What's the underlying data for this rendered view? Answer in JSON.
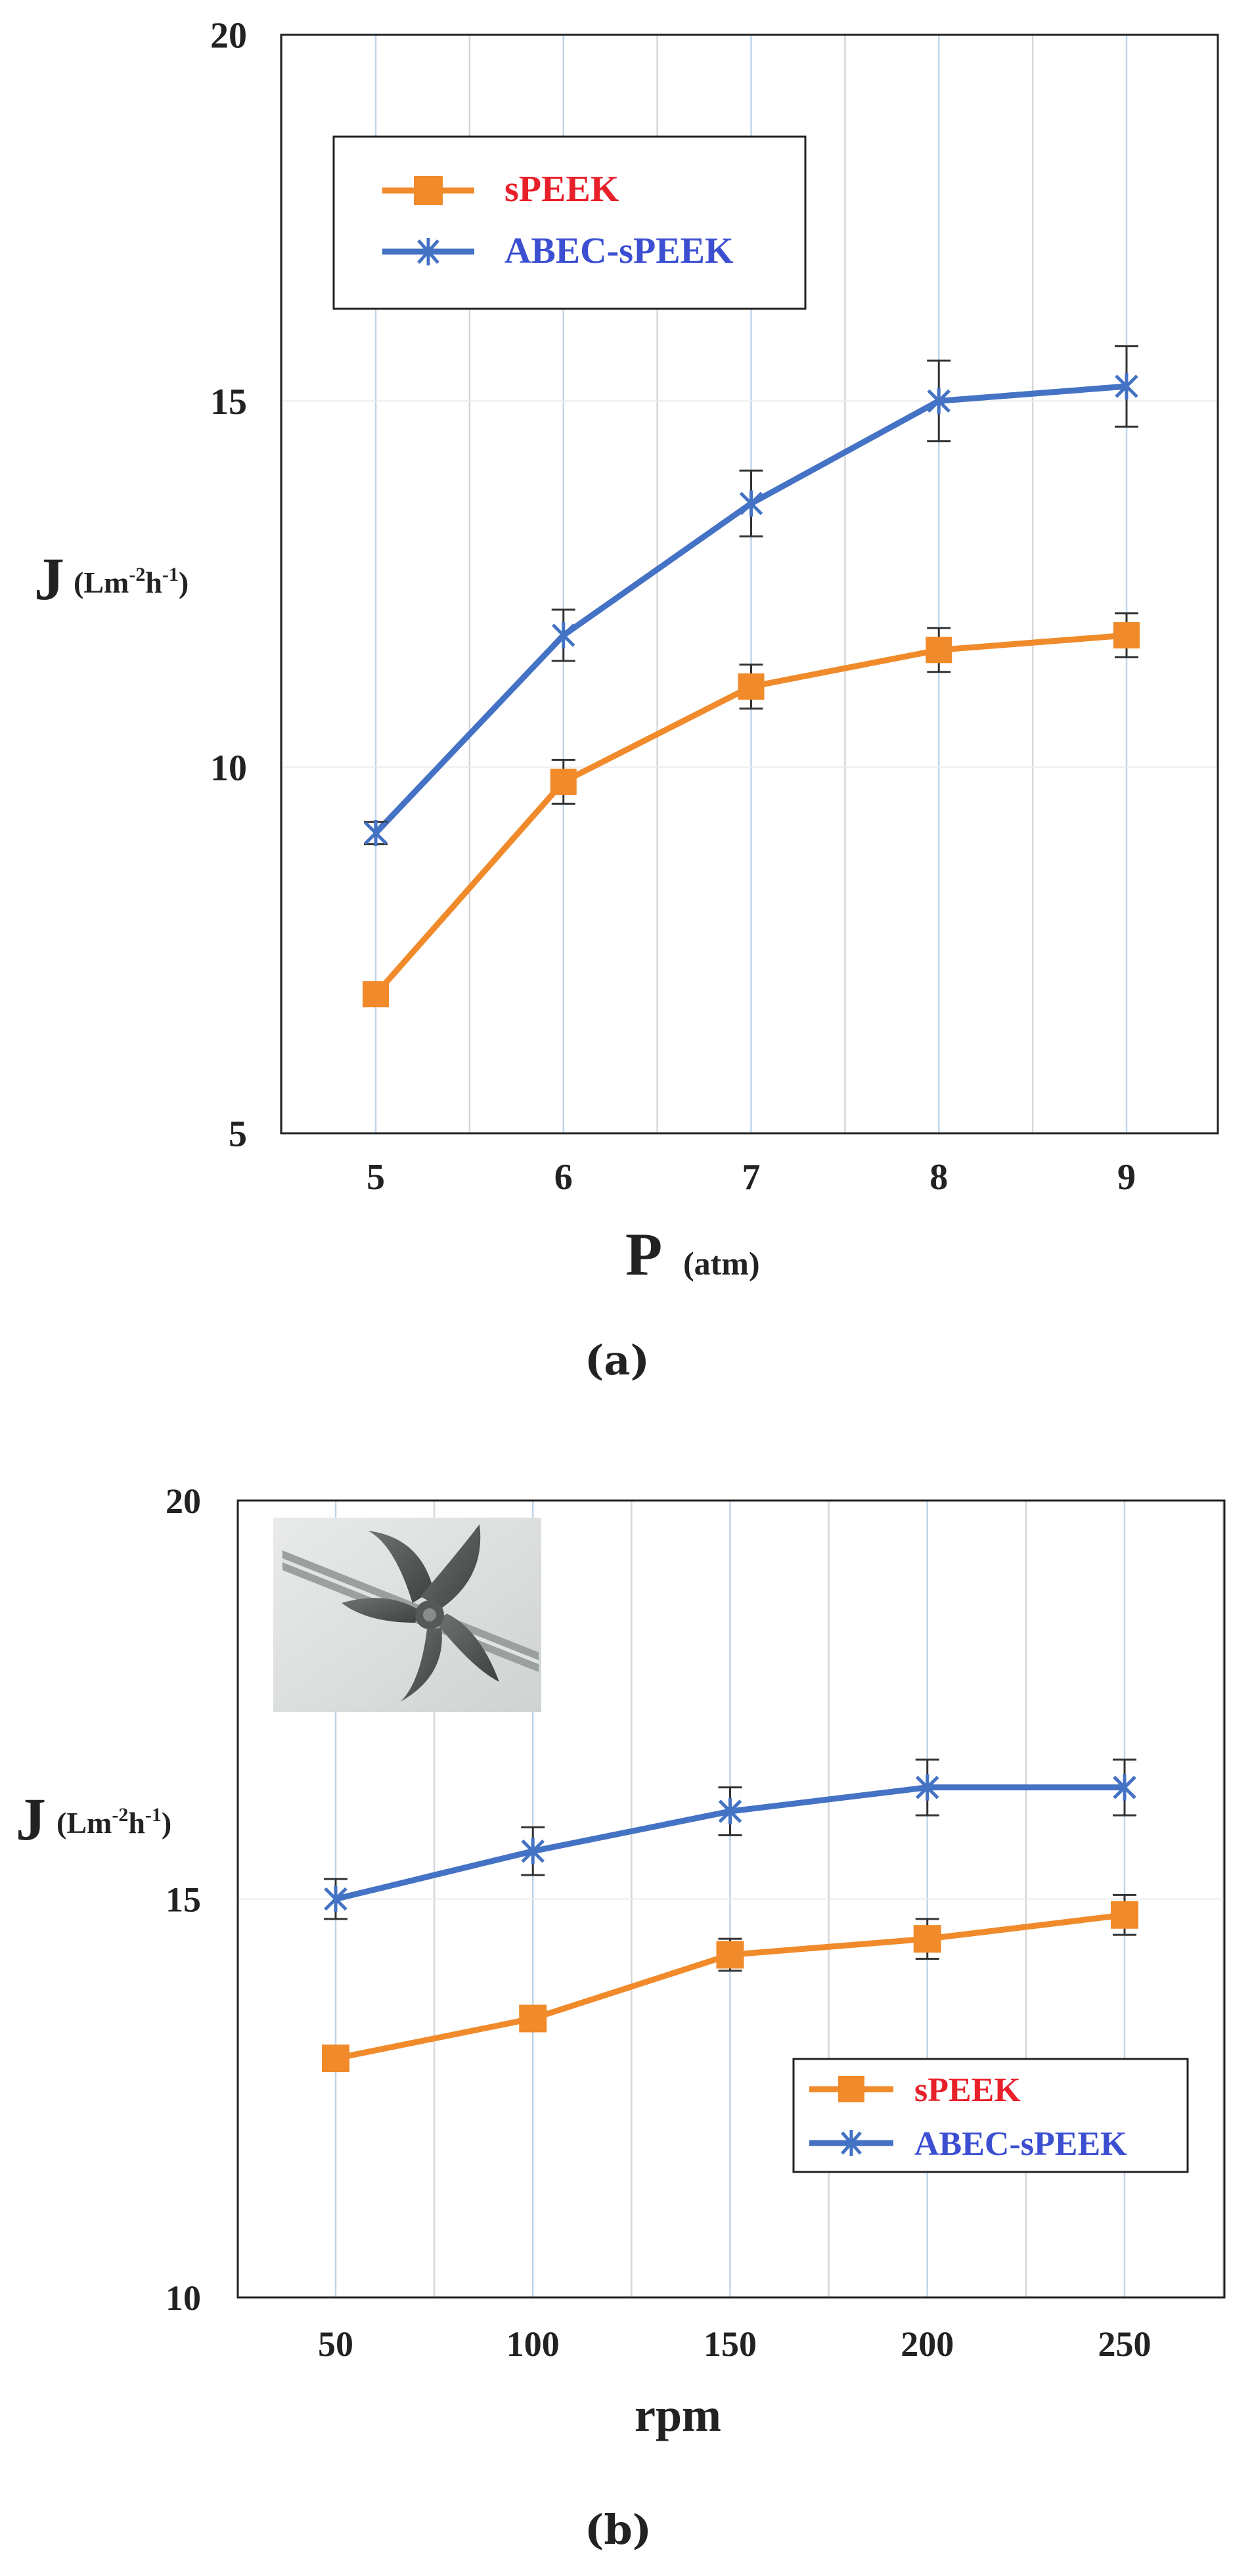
{
  "colors": {
    "spEEK": "#f08a2a",
    "abec": "#4472c4",
    "legend_speek_text": "#e8202a",
    "legend_abec_text": "#3b4fd0"
  },
  "panels": [
    {
      "label": "(a)"
    },
    {
      "label": "(b)",
      "inset_photo": "impeller-photo"
    }
  ],
  "chart_data": [
    {
      "type": "line",
      "title": "",
      "xlabel": "P",
      "xlabel_unit": "(atm)",
      "ylabel": "J",
      "ylabel_unit": "(Lm-2h-1)",
      "x": [
        5,
        6,
        7,
        8,
        9
      ],
      "x_tick_labels": [
        "5",
        "6",
        "7",
        "8",
        "9"
      ],
      "ylim": [
        5,
        20
      ],
      "y_ticks": [
        5,
        10,
        15,
        20
      ],
      "y_tick_labels": [
        "5",
        "10",
        "15",
        "20"
      ],
      "grid": true,
      "legend_position": "top-left",
      "series": [
        {
          "name": "sPEEK",
          "marker": "square",
          "values": [
            6.9,
            9.8,
            11.1,
            11.6,
            11.8
          ],
          "errors": [
            0.1,
            0.3,
            0.3,
            0.3,
            0.3
          ]
        },
        {
          "name": "ABEC-sPEEK",
          "marker": "star",
          "values": [
            9.1,
            11.8,
            13.6,
            15.0,
            15.2
          ],
          "errors": [
            0.15,
            0.35,
            0.45,
            0.55,
            0.55
          ]
        }
      ]
    },
    {
      "type": "line",
      "title": "",
      "xlabel": "rpm",
      "ylabel": "J",
      "ylabel_unit": "(Lm-2h-1)",
      "x": [
        50,
        100,
        150,
        200,
        250
      ],
      "x_tick_labels": [
        "50",
        "100",
        "150",
        "200",
        "250"
      ],
      "ylim": [
        10,
        20
      ],
      "y_ticks": [
        10,
        15,
        20
      ],
      "y_tick_labels": [
        "10",
        "15",
        "20"
      ],
      "grid": true,
      "legend_position": "bottom-right",
      "series": [
        {
          "name": "sPEEK",
          "marker": "square",
          "values": [
            13.0,
            13.5,
            14.3,
            14.5,
            14.8
          ],
          "errors": [
            0.1,
            0.15,
            0.2,
            0.25,
            0.25
          ]
        },
        {
          "name": "ABEC-sPEEK",
          "marker": "star",
          "values": [
            15.0,
            15.6,
            16.1,
            16.4,
            16.4
          ],
          "errors": [
            0.25,
            0.3,
            0.3,
            0.35,
            0.35
          ]
        }
      ]
    }
  ]
}
